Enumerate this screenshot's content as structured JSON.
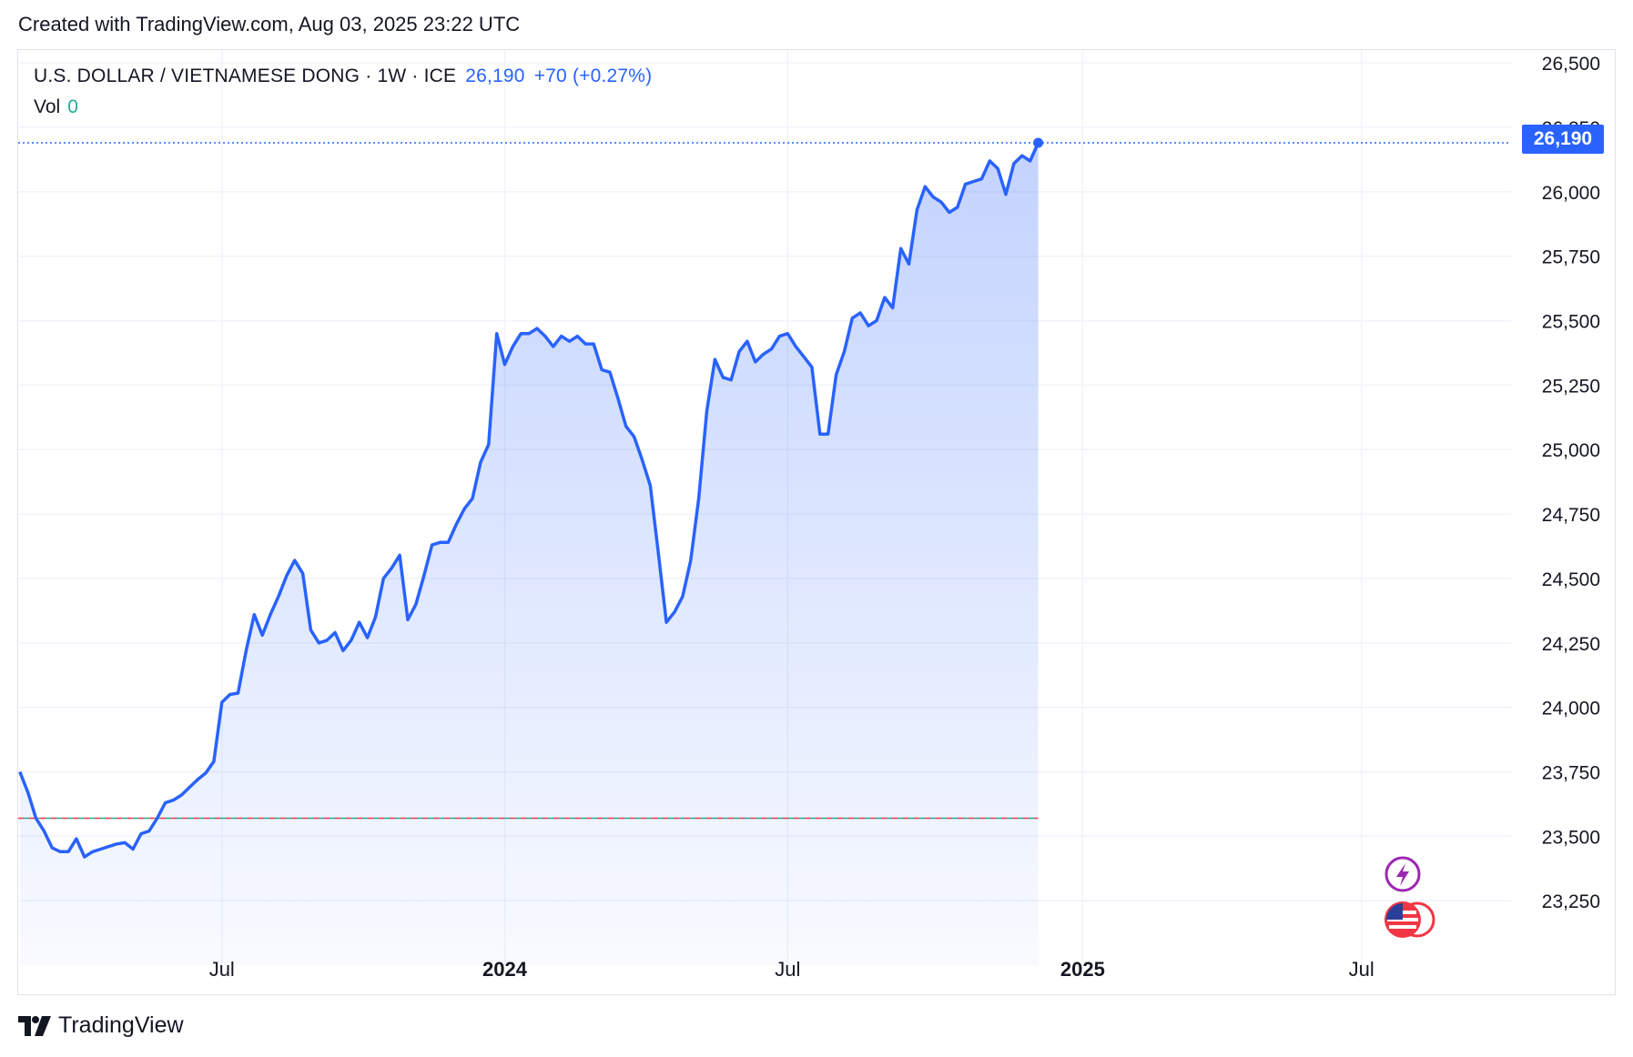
{
  "header": {
    "created_text": "Created with TradingView.com, Aug 03, 2025 23:22 UTC"
  },
  "legend": {
    "symbol": "U.S. DOLLAR / VIETNAMESE DONG · 1W · ICE",
    "last": "26,190",
    "change": "+70 (+0.27%)",
    "vol_label": "Vol",
    "vol_value": "0"
  },
  "footer": {
    "brand": "TradingView"
  },
  "colors": {
    "line": "#2962ff",
    "fill": "#2962ff",
    "grid": "#f0f3fa",
    "red_dash": "#f23645",
    "teal_dash": "#22ab94"
  },
  "chart_data": {
    "type": "area",
    "title": "U.S. DOLLAR / VIETNAMESE DONG · 1W · ICE",
    "last_price": 26190,
    "last_price_label": "26,190",
    "reference_price": 23570,
    "ylim": [
      23000,
      26550
    ],
    "yticks": [
      23250,
      23500,
      23750,
      24000,
      24250,
      24500,
      24750,
      25000,
      25250,
      25500,
      25750,
      26000,
      26250,
      26500
    ],
    "ytick_labels": [
      "23,250",
      "23,500",
      "23,750",
      "24,000",
      "24,250",
      "24,500",
      "24,750",
      "25,000",
      "25,250",
      "25,500",
      "25,750",
      "26,000",
      "26,250",
      "26,500"
    ],
    "xticks": [
      {
        "label": "Jul",
        "week": 25,
        "bold": false
      },
      {
        "label": "2024",
        "week": 60,
        "bold": true
      },
      {
        "label": "Jul",
        "week": 95,
        "bold": false
      },
      {
        "label": "2025",
        "week": 131.5,
        "bold": true
      },
      {
        "label": "Jul",
        "week": 166,
        "bold": false
      }
    ],
    "x_start_week": -0.2,
    "x_end_week": 184.5,
    "values": [
      23750,
      23670,
      23570,
      23520,
      23455,
      23440,
      23440,
      23490,
      23420,
      23440,
      23450,
      23460,
      23470,
      23475,
      23450,
      23510,
      23520,
      23570,
      23630,
      23640,
      23660,
      23690,
      23720,
      23745,
      23790,
      24020,
      24050,
      24055,
      24220,
      24360,
      24280,
      24360,
      24430,
      24510,
      24570,
      24520,
      24300,
      24250,
      24260,
      24290,
      24220,
      24260,
      24330,
      24270,
      24350,
      24500,
      24540,
      24590,
      24340,
      24400,
      24510,
      24630,
      24640,
      24640,
      24710,
      24770,
      24810,
      24950,
      25020,
      25450,
      25330,
      25400,
      25450,
      25450,
      25470,
      25440,
      25400,
      25440,
      25420,
      25440,
      25410,
      25410,
      25310,
      25300,
      25200,
      25090,
      25050,
      24960,
      24860,
      24600,
      24330,
      24370,
      24430,
      24570,
      24810,
      25150,
      25350,
      25280,
      25270,
      25380,
      25420,
      25340,
      25370,
      25390,
      25440,
      25450,
      25400,
      25360,
      25320,
      25060,
      25060,
      25290,
      25380,
      25510,
      25530,
      25480,
      25500,
      25590,
      25550,
      25780,
      25720,
      25930,
      26020,
      25980,
      25960,
      25920,
      25940,
      26030,
      26040,
      26050,
      26120,
      26090,
      25990,
      26110,
      26140,
      26120,
      26190
    ]
  }
}
